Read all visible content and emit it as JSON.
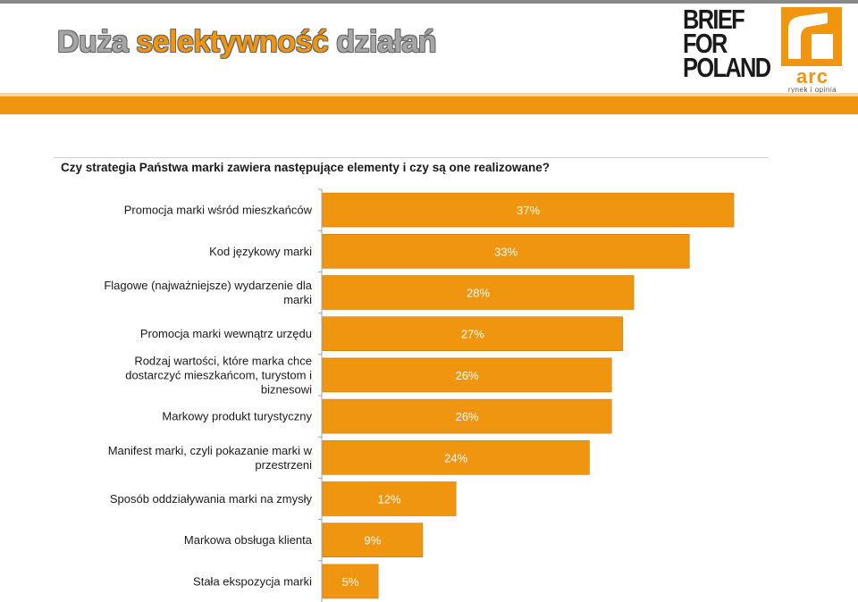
{
  "header": {
    "title_part1": "Duża ",
    "title_part2": "selektywność",
    "title_part3": " działań",
    "logo_left_lines": [
      "BRIEF",
      "FOR",
      "POLAND"
    ],
    "logo_right_text": "arc",
    "logo_right_sub": "rynek i opinia"
  },
  "colors": {
    "accent": "#f0950f",
    "bar": "#f0950f",
    "bar_edge": "#c8780a"
  },
  "chart_data": {
    "type": "bar",
    "orientation": "horizontal",
    "title": "Czy strategia Państwa marki zawiera następujące elementy i czy są one realizowane?",
    "xlim": [
      0,
      40
    ],
    "categories": [
      [
        "Promocja marki wśród mieszkańców"
      ],
      [
        "Kod językowy marki"
      ],
      [
        "Flagowe (najważniejsze) wydarzenie dla",
        "marki"
      ],
      [
        "Promocja marki wewnątrz urzędu"
      ],
      [
        "Rodzaj wartości, które marka chce",
        "dostarczyć mieszkańcom, turystom i",
        "biznesowi"
      ],
      [
        "Markowy produkt turystyczny"
      ],
      [
        "Manifest marki, czyli pokazanie marki w",
        "przestrzeni"
      ],
      [
        "Sposób oddziaływania marki na zmysły"
      ],
      [
        "Markowa obsługa klienta"
      ],
      [
        "Stała ekspozycja marki"
      ]
    ],
    "values": [
      37,
      33,
      28,
      27,
      26,
      26,
      24,
      12,
      9,
      5
    ],
    "labels": [
      "37%",
      "33%",
      "28%",
      "27%",
      "26%",
      "26%",
      "24%",
      "12%",
      "9%",
      "5%"
    ]
  }
}
